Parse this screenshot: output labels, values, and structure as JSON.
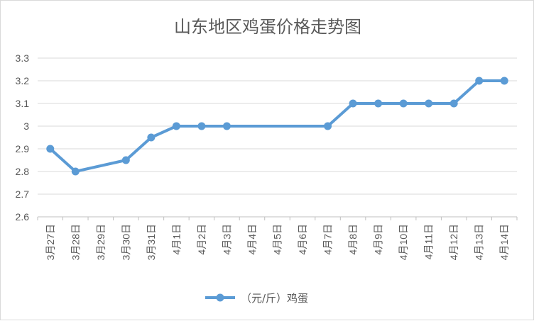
{
  "chart_data": {
    "type": "line",
    "title": "山东地区鸡蛋价格走势图",
    "xlabel": "",
    "ylabel": "",
    "categories": [
      "3月27日",
      "3月28日",
      "3月29日",
      "3月30日",
      "3月31日",
      "4月1日",
      "4月2日",
      "4月3日",
      "4月4日",
      "4月5日",
      "4月6日",
      "4月7日",
      "4月8日",
      "4月9日",
      "4月10日",
      "4月11日",
      "4月12日",
      "4月13日",
      "4月14日"
    ],
    "series": [
      {
        "name": "（元/斤）鸡蛋",
        "values": [
          2.9,
          2.8,
          null,
          2.85,
          2.95,
          3.0,
          3.0,
          3.0,
          null,
          null,
          null,
          3.0,
          3.1,
          3.1,
          3.1,
          3.1,
          3.1,
          3.2,
          3.2
        ]
      }
    ],
    "yticks": [
      "2.6",
      "2.7",
      "2.8",
      "2.9",
      "3",
      "3.1",
      "3.2",
      "3.3"
    ],
    "ylim": [
      2.6,
      3.3
    ],
    "grid": "horizontal",
    "legend": "bottom",
    "colors": {
      "line": "#5b9bd5",
      "grid": "#d9d9d9",
      "axis": "#bfbfbf",
      "text": "#595959"
    }
  }
}
